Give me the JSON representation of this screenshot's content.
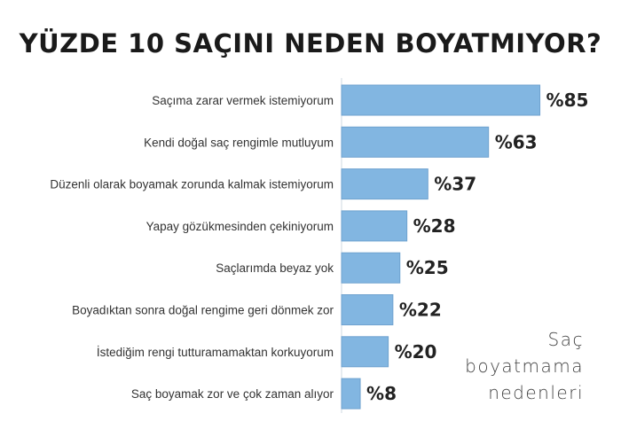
{
  "chart_data": {
    "type": "bar",
    "orientation": "horizontal",
    "title": "YÜZDE 10 SAÇINI NEDEN BOYATMIYOR?",
    "categories": [
      "Saçıma zarar vermek istemiyorum",
      "Kendi doğal saç rengimle mutluyum",
      "Düzenli olarak boyamak zorunda kalmak istemiyorum",
      "Yapay gözükmesinden çekiniyorum",
      "Saçlarımda beyaz yok",
      "Boyadıktan sonra doğal rengime geri dönmek zor",
      "İstediğim rengi tutturamamaktan korkuyorum",
      "Saç boyamak zor ve çok zaman alıyor"
    ],
    "values": [
      85,
      63,
      37,
      28,
      25,
      22,
      20,
      8
    ],
    "value_labels": [
      "%85",
      "%63",
      "%37",
      "%28",
      "%25",
      "%22",
      "%20",
      "%8"
    ],
    "xlim": [
      0,
      100
    ],
    "grid": false,
    "bar_color": "#82b6e1",
    "bar_border_color": "#6fa2cf"
  },
  "annotation": {
    "lines": [
      "Saç",
      "boyatmama",
      "nedenleri"
    ]
  }
}
